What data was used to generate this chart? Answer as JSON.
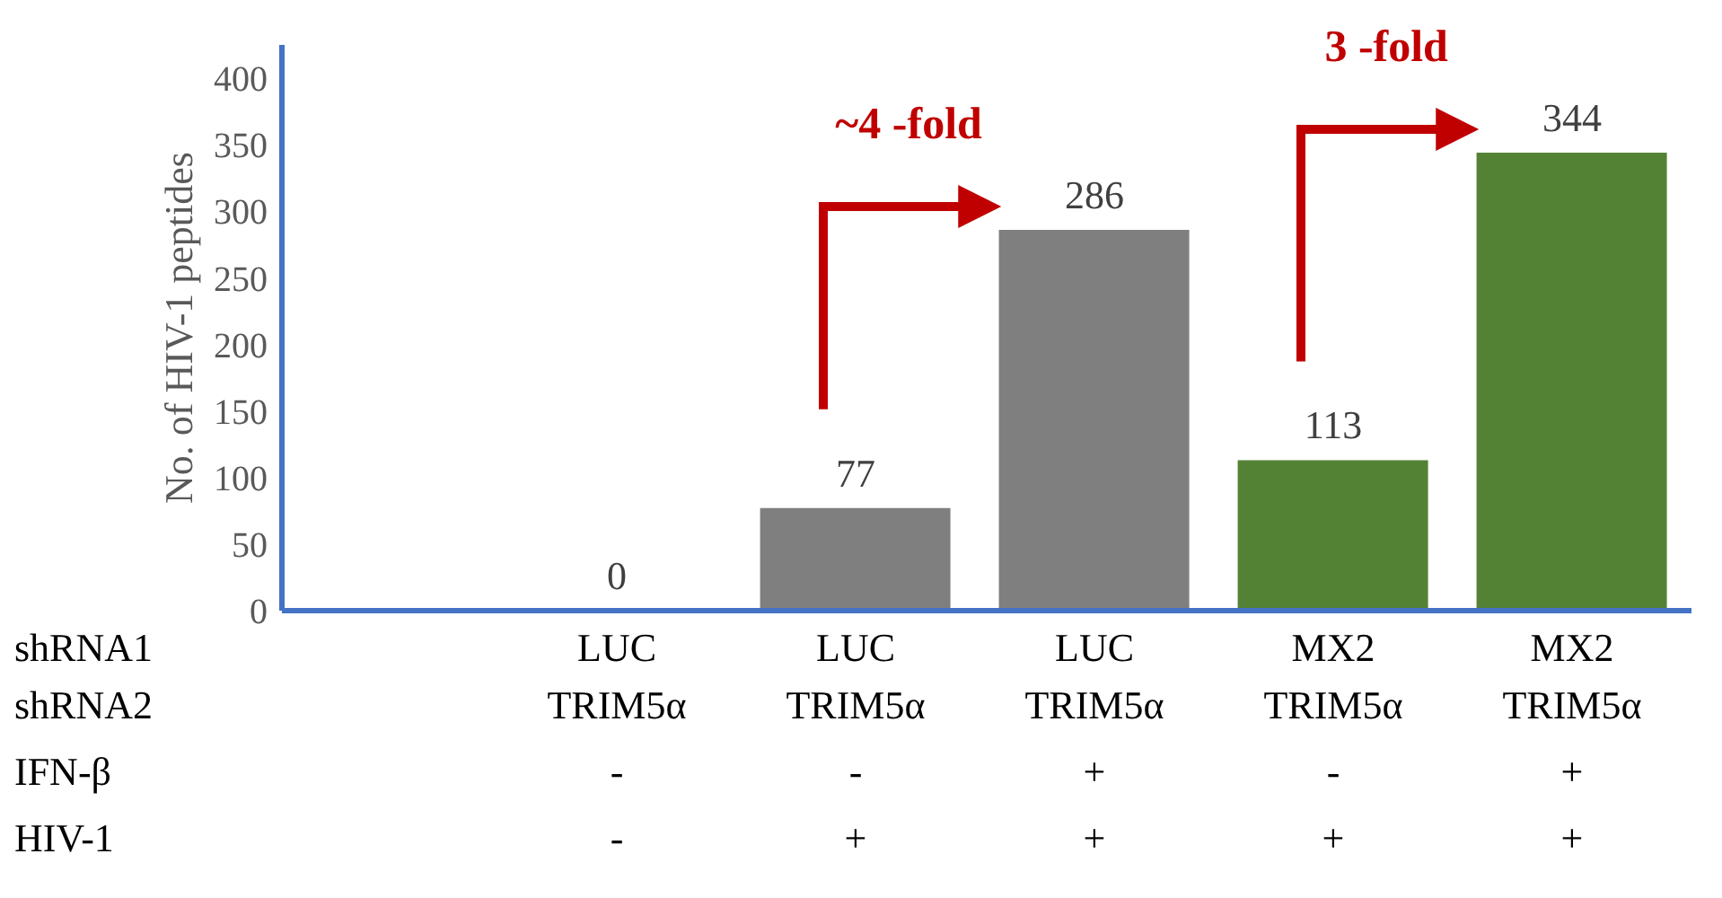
{
  "chart_data": {
    "type": "bar",
    "ylabel": "No. of HIV-1 peptides",
    "categories": [
      "LUC\nTRIM5α\n-\n-",
      "LUC\nTRIM5α\n-\n+",
      "LUC\nTRIM5α\n+\n+",
      "MX2\nTRIM5α\n-\n+",
      "MX2\nTRIM5α\n+\n+"
    ],
    "values": [
      0,
      77,
      286,
      113,
      344
    ],
    "colors": [
      "#7f7f7f",
      "#7f7f7f",
      "#7f7f7f",
      "#548235",
      "#548235"
    ],
    "ylim": [
      0,
      425
    ],
    "yticks": [
      0,
      50,
      100,
      150,
      200,
      250,
      300,
      350,
      400
    ],
    "data_labels": true,
    "grid": false,
    "legend": false,
    "annotations": [
      "shRNA1",
      "shRNA2",
      "IFN-β",
      "HIV-1",
      "~4 -fold",
      "3 -fold"
    ]
  }
}
